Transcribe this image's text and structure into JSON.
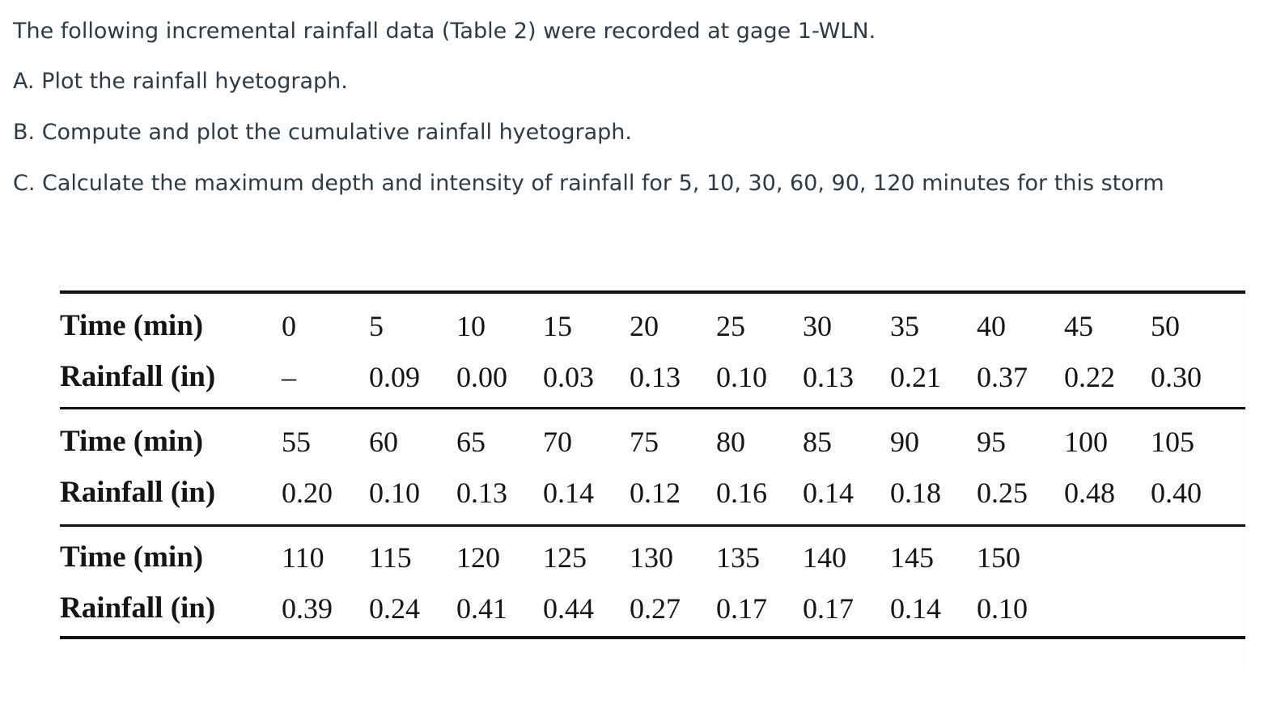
{
  "question": {
    "intro": "The following incremental rainfall data (Table 2) were recorded at gage 1-WLN.",
    "part_a": "A.  Plot the rainfall hyetograph.",
    "part_b": "B.  Compute and plot the cumulative rainfall hyetograph.",
    "part_c": "C.  Calculate the maximum depth and intensity of rainfall for 5, 10, 30, 60, 90, 120 minutes for this storm"
  },
  "table": {
    "time_label": "Time (min)",
    "rain_label": "Rainfall (in)",
    "blocks": [
      {
        "times": [
          "0",
          "5",
          "10",
          "15",
          "20",
          "25",
          "30",
          "35",
          "40",
          "45",
          "50"
        ],
        "rainfall": [
          "–",
          "0.09",
          "0.00",
          "0.03",
          "0.13",
          "0.10",
          "0.13",
          "0.21",
          "0.37",
          "0.22",
          "0.30"
        ]
      },
      {
        "times": [
          "55",
          "60",
          "65",
          "70",
          "75",
          "80",
          "85",
          "90",
          "95",
          "100",
          "105"
        ],
        "rainfall": [
          "0.20",
          "0.10",
          "0.13",
          "0.14",
          "0.12",
          "0.16",
          "0.14",
          "0.18",
          "0.25",
          "0.48",
          "0.40"
        ]
      },
      {
        "times": [
          "110",
          "115",
          "120",
          "125",
          "130",
          "135",
          "140",
          "145",
          "150"
        ],
        "rainfall": [
          "0.39",
          "0.24",
          "0.41",
          "0.44",
          "0.27",
          "0.17",
          "0.17",
          "0.14",
          "0.10"
        ]
      }
    ]
  }
}
